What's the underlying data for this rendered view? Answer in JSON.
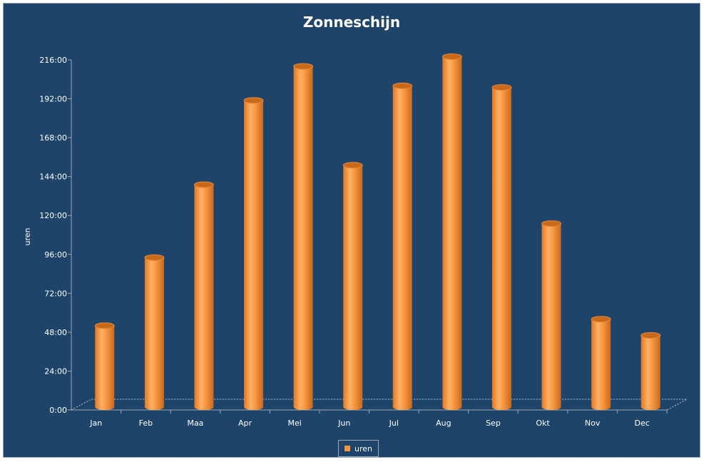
{
  "chart_data": {
    "type": "bar",
    "title": "Zonneschijn",
    "xlabel": "",
    "ylabel": "uren",
    "categories": [
      "Jan",
      "Feb",
      "Maa",
      "Apr",
      "Mei",
      "Jun",
      "Jul",
      "Aug",
      "Sep",
      "Okt",
      "Nov",
      "Dec"
    ],
    "series": [
      {
        "name": "uren",
        "values": [
          52,
          94,
          139,
          191,
          212,
          151,
          200,
          218,
          199,
          115,
          56,
          46
        ]
      }
    ],
    "ylim": [
      0,
      216
    ],
    "yticks": [
      "0:00",
      "24:00",
      "48:00",
      "72:00",
      "96:00",
      "120:00",
      "144:00",
      "168:00",
      "192:00",
      "216:00"
    ],
    "grid": false,
    "legend_position": "bottom",
    "colors": {
      "background": "#1f4469",
      "bar": "#f7963f",
      "bar_dark": "#c96a1a",
      "text": "#ffffff"
    }
  }
}
